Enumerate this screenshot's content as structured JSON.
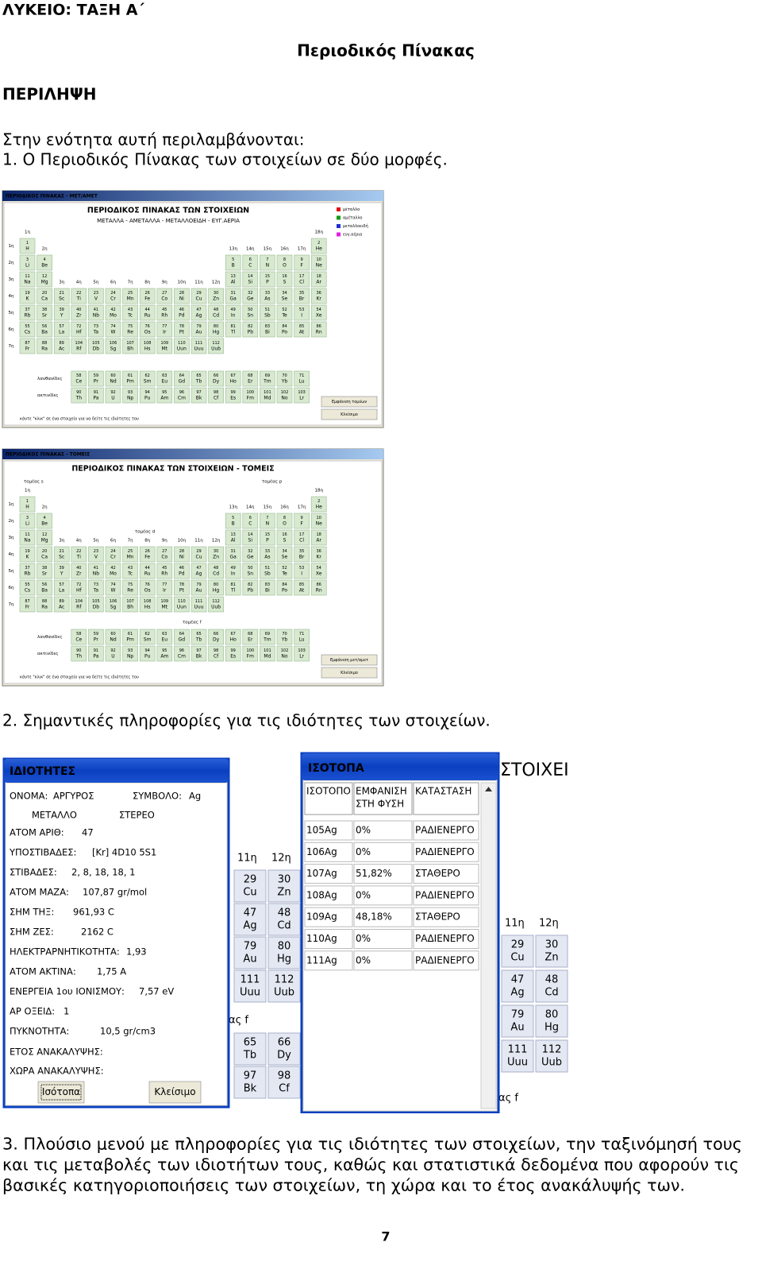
{
  "header": "ΛΥΚΕΙΟ: ΤΑΞΗ Α΄",
  "title": "Περιοδικός Πίνακας",
  "section": "ΠΕΡΙΛΗΨΗ",
  "intro": [
    "Στην ενότητα αυτή περιλαμβάνονται:",
    "1. Ο Περιοδικός Πίνακας των στοιχείων σε δύο μορφές."
  ],
  "elements": {
    "numbers": [
      1,
      2,
      3,
      4,
      5,
      6,
      7,
      8,
      9,
      10,
      11,
      12,
      13,
      14,
      15,
      16,
      17,
      18,
      19,
      20,
      21,
      22,
      23,
      24,
      25,
      26,
      27,
      28,
      29,
      30,
      31,
      32,
      33,
      34,
      35,
      36,
      37,
      38,
      39,
      40,
      41,
      42,
      43,
      44,
      45,
      46,
      47,
      48,
      49,
      50,
      51,
      52,
      53,
      54,
      55,
      56,
      57,
      58,
      59,
      60,
      61,
      62,
      63,
      64,
      65,
      66,
      67,
      68,
      69,
      70,
      71,
      72,
      73,
      74,
      75,
      76,
      77,
      78,
      79,
      80,
      81,
      82,
      83,
      84,
      85,
      86,
      87,
      88,
      89,
      90,
      91,
      92,
      93,
      94,
      95,
      96,
      97,
      98,
      99,
      100,
      101,
      102,
      103,
      104,
      105,
      106,
      107,
      108,
      109,
      110,
      111,
      112
    ],
    "symbols": [
      "H",
      "He",
      "Li",
      "Be",
      "B",
      "C",
      "N",
      "O",
      "F",
      "Ne",
      "Na",
      "Mg",
      "Al",
      "Si",
      "P",
      "S",
      "Cl",
      "Ar",
      "K",
      "Ca",
      "Sc",
      "Ti",
      "V",
      "Cr",
      "Mn",
      "Fe",
      "Co",
      "Ni",
      "Cu",
      "Zn",
      "Ga",
      "Ge",
      "As",
      "Se",
      "Br",
      "Kr",
      "Rb",
      "Sr",
      "Y",
      "Zr",
      "Nb",
      "Mo",
      "Tc",
      "Ru",
      "Rh",
      "Pd",
      "Ag",
      "Cd",
      "In",
      "Sn",
      "Sb",
      "Te",
      "I",
      "Xe",
      "Cs",
      "Ba",
      "La",
      "Ce",
      "Pr",
      "Nd",
      "Pm",
      "Sm",
      "Eu",
      "Gd",
      "Tb",
      "Dy",
      "Ho",
      "Er",
      "Tm",
      "Yb",
      "Lu",
      "Hf",
      "Ta",
      "W",
      "Re",
      "Os",
      "Ir",
      "Pt",
      "Au",
      "Hg",
      "Tl",
      "Pb",
      "Bi",
      "Po",
      "At",
      "Rn",
      "Fr",
      "Ra",
      "Ac",
      "Th",
      "Pa",
      "U",
      "Np",
      "Pu",
      "Am",
      "Cm",
      "Bk",
      "Cf",
      "Es",
      "Fm",
      "Md",
      "No",
      "Lr",
      "Rf",
      "Db",
      "Sg",
      "Bh",
      "Hs",
      "Mt",
      "Uun",
      "Uuu",
      "Uub"
    ]
  },
  "groups": [
    "1η",
    "2η",
    "3η",
    "4η",
    "5η",
    "6η",
    "7η",
    "8η",
    "9η",
    "10η",
    "11η",
    "12η",
    "13η",
    "14η",
    "15η",
    "16η",
    "17η",
    "18η"
  ],
  "periods": [
    "1η",
    "2η",
    "3η",
    "4η",
    "5η",
    "6η",
    "7η"
  ],
  "screens": [
    {
      "window_title": "ΠΕΡΙΟΔΙΚΟΣ ΠΙΝΑΚΑΣ - ΜΕΤ/ΑΜΕΤ",
      "heading": "ΠΕΡΙΟΔΙΚΟΣ ΠΙΝΑΚΑΣ ΤΩΝ ΣΤΟΙΧΕΙΩΝ",
      "subheading": "ΜΕΤΑΛΛΑ - ΑΜΕΤΑΛΛΑ - ΜΕΤΑΛΛΟΕΙΔΗ - ΕΥΓ.ΑΕΡΙΑ",
      "legend": [
        "μέταλλο",
        "αμέταλλο",
        "μεταλλοειδή",
        "ευγ.αέρια"
      ],
      "lanthanides": "λανθανίδες",
      "actinides": "ακτινίδες",
      "buttons": [
        "Εμφάνιση τομέων",
        "Κλείσιμο"
      ],
      "footer": "κάντε \"κλικ\" σε ένα στοιχείο για να δείτε τις ιδιότητες του"
    },
    {
      "window_title": "ΠΕΡΙΟΔΙΚΟΣ ΠΙΝΑΚΑΣ - ΤΟΜΕΙΣ",
      "heading": "ΠΕΡΙΟΔΙΚΟΣ ΠΙΝΑΚΑΣ ΤΩΝ ΣΤΟΙΧΕΙΩΝ - ΤΟΜΕΙΣ",
      "blocks": [
        "τομέας s",
        "τομέας p",
        "τομέας d",
        "τομέας f"
      ],
      "lanthanides": "λανθανίδες",
      "actinides": "ακτινίδες",
      "buttons": [
        "Εμφάνιση μετ/αμετ",
        "Κλείσιμο"
      ],
      "footer": "κάντε \"κλικ\" σε ένα στοιχείο για να δείτε τις ιδιότητες του"
    }
  ],
  "item2": "2. Σημαντικές πληροφορίες για τις ιδιότητες των στοιχείων.",
  "properties": {
    "title": "ΙΔΙΟΤΗΤΕΣ",
    "rows": [
      [
        "ΟΝΟΜΑ:",
        "ΑΡΓΥΡΟΣ",
        "ΣΥΜΒΟΛΟ:",
        "Ag"
      ],
      [
        "ΜΕΤΑΛΛΟ",
        "ΣΤΕΡΕΟ"
      ],
      [
        "ΑΤΟΜ ΑΡΙΘ:",
        "47"
      ],
      [
        "ΥΠΟΣΤΙΒΑΔΕΣ:",
        "[Kr] 4D10 5S1"
      ],
      [
        "ΣΤΙΒΑΔΕΣ:",
        "2, 8, 18, 18, 1"
      ],
      [
        "ΑΤΟΜ ΜΑΖΑ:",
        "107,87  gr/mol"
      ],
      [
        "ΣΗΜ ΤΗΞ:",
        "961,93  C"
      ],
      [
        "ΣΗΜ ΖΕΣ:",
        "2162  C"
      ],
      [
        "ΗΛΕΚΤΡΑΡΝΗΤΙΚΟΤΗΤΑ:",
        "1,93"
      ],
      [
        "ΑΤΟΜ ΑΚΤΙΝΑ:",
        "1,75  A"
      ],
      [
        "ΕΝΕΡΓΕΙΑ 1ου ΙΟΝΙΣΜΟΥ:",
        "7,57  eV"
      ],
      [
        "ΑΡ ΟΞΕΙΔ:",
        "1"
      ],
      [
        "ΠΥΚΝΟΤΗΤΑ:",
        "10,5  gr/cm3"
      ],
      [
        "ΕΤΟΣ ΑΝΑΚΑΛΥΨΗΣ:"
      ],
      [
        "ΧΩΡΑ ΑΝΑΚΑΛΥΨΗΣ:"
      ]
    ],
    "buttons": [
      "Ισότοπα",
      "Κλείσιμο"
    ]
  },
  "isotopes": {
    "title": "ΙΣΟΤΟΠΑ",
    "headers": [
      [
        "ΙΣΟΤΟΠΟ"
      ],
      [
        "ΕΜΦΑΝΙΣΗ",
        "ΣΤΗ ΦΥΣΗ"
      ],
      [
        "ΚΑΤΑΣΤΑΣΗ"
      ]
    ],
    "rows": [
      [
        "105Ag",
        "0%",
        "ΡΑΔΙΕΝΕΡΓΟ"
      ],
      [
        "106Ag",
        "0%",
        "ΡΑΔΙΕΝΕΡΓΟ"
      ],
      [
        "107Ag",
        "51,82%",
        "ΣΤΑΘΕΡΟ"
      ],
      [
        "108Ag",
        "0%",
        "ΡΑΔΙΕΝΕΡΓΟ"
      ],
      [
        "109Ag",
        "48,18%",
        "ΣΤΑΘΕΡΟ"
      ],
      [
        "110Ag",
        "0%",
        "ΡΑΔΙΕΝΕΡΓΟ"
      ],
      [
        "111Ag",
        "0%",
        "ΡΑΔΙΕΝΕΡΓΟ"
      ]
    ]
  },
  "background": {
    "heading_fragment": "ΣΤΟΙΧΕΙ",
    "block_fragment": "ας f"
  },
  "item3": [
    "3. Πλούσιο μενού με πληροφορίες για τις ιδιότητες των στοιχείων, την ταξινόμησή τους",
    "και τις μεταβολές των ιδιοτήτων τους, καθώς και στατιστικά δεδομένα που αφορούν τις",
    "βασικές κατηγοριοποιήσεις των στοιχείων, τη χώρα και το έτος ανακάλυψής των."
  ],
  "page_number": 7
}
